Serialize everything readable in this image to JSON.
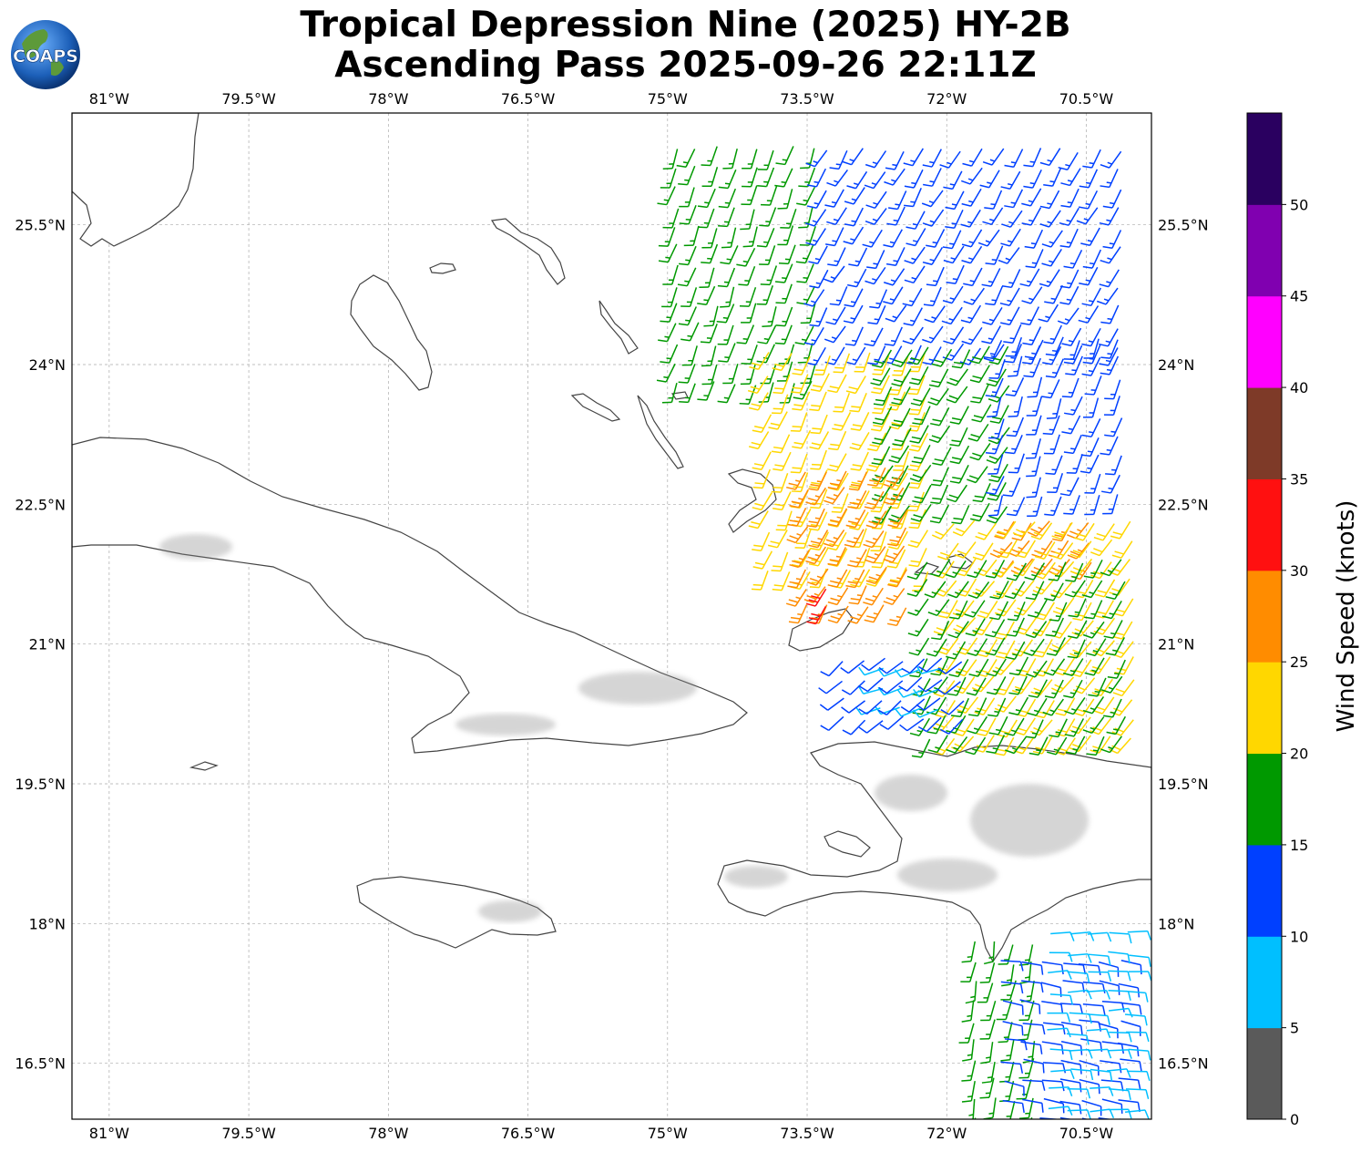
{
  "title": {
    "line1": "Tropical Depression Nine (2025) HY-2B",
    "line2": "Ascending Pass 2025-09-26 22:11Z"
  },
  "logo": {
    "text": "COAPS",
    "icon": "globe-icon"
  },
  "map": {
    "lon_range": [
      -81.4,
      -69.8
    ],
    "lat_range": [
      15.9,
      26.7
    ],
    "lon_ticks": [
      {
        "value": -81.0,
        "label": "81°W"
      },
      {
        "value": -79.5,
        "label": "79.5°W"
      },
      {
        "value": -78.0,
        "label": "78°W"
      },
      {
        "value": -76.5,
        "label": "76.5°W"
      },
      {
        "value": -75.0,
        "label": "75°W"
      },
      {
        "value": -73.5,
        "label": "73.5°W"
      },
      {
        "value": -72.0,
        "label": "72°W"
      },
      {
        "value": -70.5,
        "label": "70.5°W"
      }
    ],
    "lat_ticks": [
      {
        "value": 25.5,
        "label": "25.5°N"
      },
      {
        "value": 24.0,
        "label": "24°N"
      },
      {
        "value": 22.5,
        "label": "22.5°N"
      },
      {
        "value": 21.0,
        "label": "21°N"
      },
      {
        "value": 19.5,
        "label": "19.5°N"
      },
      {
        "value": 18.0,
        "label": "18°N"
      },
      {
        "value": 16.5,
        "label": "16.5°N"
      }
    ],
    "grid": true,
    "land_outline_color": "#444444",
    "land_shade_color": "#8a8a8a"
  },
  "colorbar": {
    "label": "Wind Speed (knots)",
    "ticks": [
      "0",
      "5",
      "10",
      "15",
      "20",
      "25",
      "30",
      "35",
      "40",
      "45",
      "50"
    ],
    "bins": [
      {
        "min": 0,
        "max": 5,
        "color": "#5a5a5a"
      },
      {
        "min": 5,
        "max": 10,
        "color": "#00bfff"
      },
      {
        "min": 10,
        "max": 15,
        "color": "#0040ff"
      },
      {
        "min": 15,
        "max": 20,
        "color": "#009900"
      },
      {
        "min": 20,
        "max": 25,
        "color": "#ffd700"
      },
      {
        "min": 25,
        "max": 30,
        "color": "#ff8c00"
      },
      {
        "min": 30,
        "max": 35,
        "color": "#ff1010"
      },
      {
        "min": 35,
        "max": 40,
        "color": "#7e3a28"
      },
      {
        "min": 40,
        "max": 45,
        "color": "#ff00ff"
      },
      {
        "min": 45,
        "max": 50,
        "color": "#8000b0"
      },
      {
        "min": 50,
        "max": 55,
        "color": "#2a0060"
      }
    ]
  },
  "wind_regions": [
    {
      "name": "north-swath-green",
      "lon": [
        -74.9,
        -73.3
      ],
      "lat": [
        23.8,
        26.5
      ],
      "speed_kt": 17,
      "dir_deg": 200
    },
    {
      "name": "north-swath-blue",
      "lon": [
        -73.3,
        -70.0
      ],
      "lat": [
        24.2,
        26.5
      ],
      "speed_kt": 13,
      "dir_deg": 210
    },
    {
      "name": "mid-swath-yellow",
      "lon": [
        -73.9,
        -72.2
      ],
      "lat": [
        21.8,
        24.2
      ],
      "speed_kt": 22,
      "dir_deg": 205
    },
    {
      "name": "mid-swath-green",
      "lon": [
        -72.6,
        -71.3
      ],
      "lat": [
        22.5,
        24.3
      ],
      "speed_kt": 18,
      "dir_deg": 210
    },
    {
      "name": "mid-east-blue",
      "lon": [
        -71.4,
        -70.0
      ],
      "lat": [
        22.6,
        24.3
      ],
      "speed_kt": 13,
      "dir_deg": 200
    },
    {
      "name": "core-orange",
      "lon": [
        -73.5,
        -72.3
      ],
      "lat": [
        21.4,
        23.0
      ],
      "speed_kt": 27,
      "dir_deg": 210
    },
    {
      "name": "core-red",
      "lon": [
        -73.3,
        -73.1
      ],
      "lat": [
        21.4,
        21.7
      ],
      "speed_kt": 31,
      "dir_deg": 210
    },
    {
      "name": "east-orange",
      "lon": [
        -71.3,
        -70.4
      ],
      "lat": [
        21.9,
        22.5
      ],
      "speed_kt": 26,
      "dir_deg": 215
    },
    {
      "name": "east-yellow",
      "lon": [
        -71.9,
        -70.0
      ],
      "lat": [
        20.0,
        22.5
      ],
      "speed_kt": 22,
      "dir_deg": 215
    },
    {
      "name": "east-green",
      "lon": [
        -72.2,
        -70.0
      ],
      "lat": [
        20.0,
        21.9
      ],
      "speed_kt": 17,
      "dir_deg": 210
    },
    {
      "name": "south-core-cyan",
      "lon": [
        -72.7,
        -71.9
      ],
      "lat": [
        20.3,
        20.9
      ],
      "speed_kt": 8,
      "dir_deg": 250
    },
    {
      "name": "south-core-blue",
      "lon": [
        -73.1,
        -71.7
      ],
      "lat": [
        20.2,
        21.0
      ],
      "speed_kt": 12,
      "dir_deg": 230
    },
    {
      "name": "south-swath-green",
      "lon": [
        -71.7,
        -71.0
      ],
      "lat": [
        15.9,
        17.8
      ],
      "speed_kt": 17,
      "dir_deg": 190
    },
    {
      "name": "south-swath-blue",
      "lon": [
        -71.4,
        -70.0
      ],
      "lat": [
        15.9,
        17.6
      ],
      "speed_kt": 12,
      "dir_deg": 100
    },
    {
      "name": "south-swath-cyan",
      "lon": [
        -70.9,
        -70.0
      ],
      "lat": [
        16.0,
        18.0
      ],
      "speed_kt": 8,
      "dir_deg": 90
    }
  ]
}
